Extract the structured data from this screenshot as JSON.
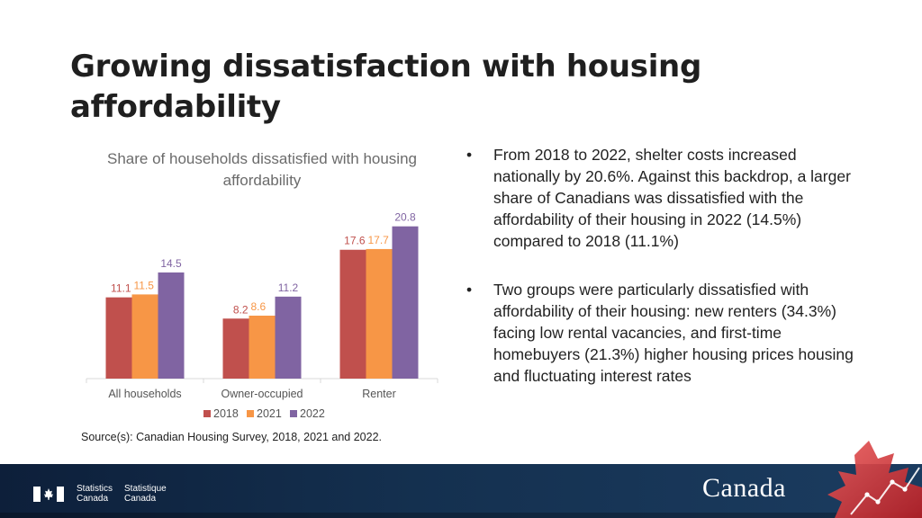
{
  "slide": {
    "title": "Growing dissatisfaction with housing affordability",
    "source": "Source(s): Canadian Housing Survey, 2018, 2021 and 2022."
  },
  "bullets": [
    {
      "marker": "•",
      "text": "From 2018 to 2022, shelter costs increased nationally by 20.6%. Against this backdrop, a larger share of Canadians was dissatisfied with the affordability of their housing in 2022 (14.5%) compared to 2018 (11.1%)"
    },
    {
      "marker": "•",
      "text": "Two groups were particularly dissatisfied with affordability of their housing: new renters (34.3%) facing low rental vacancies, and first-time homebuyers (21.3%) higher housing prices housing and fluctuating interest rates"
    }
  ],
  "footer": {
    "agency_en": [
      "Statistics",
      "Canada"
    ],
    "agency_fr": [
      "Statistique",
      "Canada"
    ],
    "wordmark": "Canada"
  },
  "colors": {
    "s2018": "#c0504d",
    "s2021": "#f79646",
    "s2022": "#8064a2"
  },
  "chart_data": {
    "type": "bar",
    "title": "Share of households dissatisfied with housing affordability",
    "categories": [
      "All households",
      "Owner-occupied",
      "Renter"
    ],
    "series": [
      {
        "name": "2018",
        "values": [
          11.1,
          8.2,
          17.6
        ]
      },
      {
        "name": "2021",
        "values": [
          11.5,
          8.6,
          17.7
        ]
      },
      {
        "name": "2022",
        "values": [
          14.5,
          11.2,
          20.8
        ]
      }
    ],
    "ylim": [
      0,
      21.5
    ],
    "xlabel": "",
    "ylabel": "",
    "grid": false,
    "legend": "bottom"
  }
}
